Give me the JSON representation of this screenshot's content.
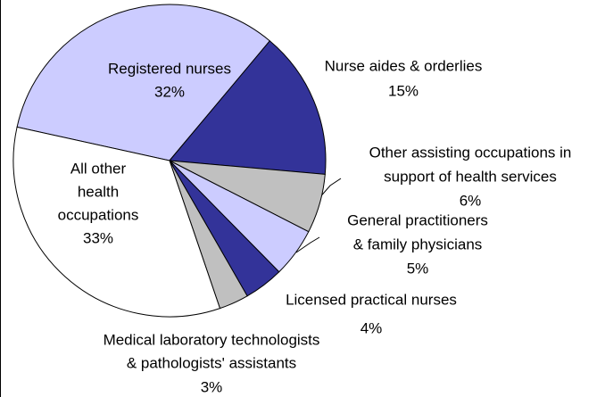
{
  "chart_data": {
    "type": "pie",
    "categories": [
      [
        "Registered nurses"
      ],
      [
        "Nurse aides & orderlies"
      ],
      [
        "Other assisting occupations in",
        "support of health services"
      ],
      [
        "General practitioners",
        "& family physicians"
      ],
      [
        "Licensed practical nurses"
      ],
      [
        "Medical laboratory technologists",
        "& pathologists' assistants"
      ],
      [
        "All other",
        "health",
        "occupations"
      ]
    ],
    "values": [
      32,
      15,
      6,
      5,
      4,
      3,
      33
    ],
    "value_labels": [
      "32%",
      "15%",
      "6%",
      "5%",
      "4%",
      "3%",
      "33%"
    ],
    "colors": [
      "#ccccff",
      "#333399",
      "#c0c0c0",
      "#ccccff",
      "#333399",
      "#c0c0c0",
      "#ffffff"
    ]
  }
}
